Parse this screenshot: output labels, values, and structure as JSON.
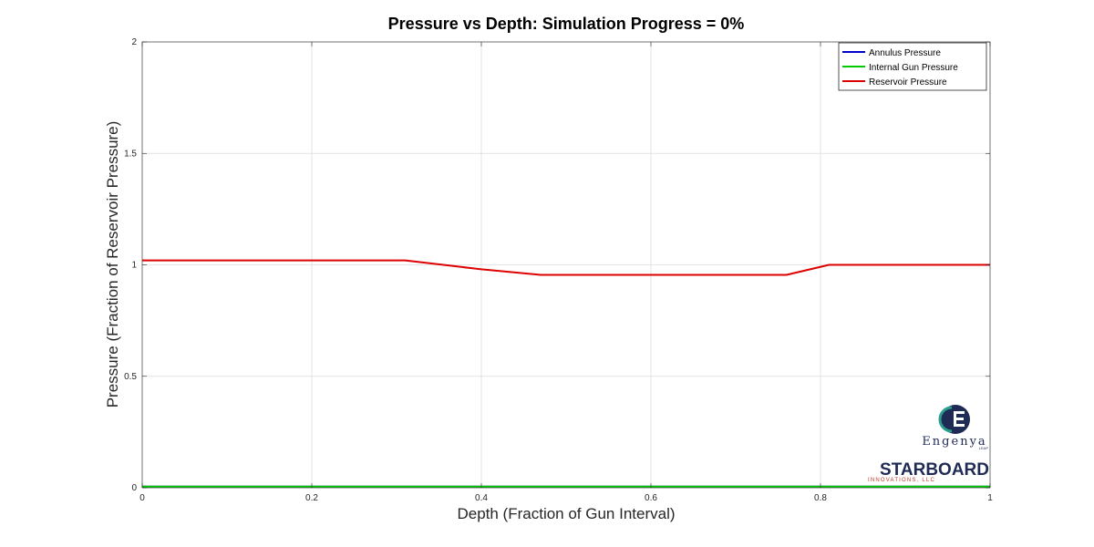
{
  "chart_data": {
    "type": "line",
    "title": "Pressure vs Depth: Simulation Progress = 0%",
    "xlabel": "Depth (Fraction of Gun Interval)",
    "ylabel": "Pressure (Fraction of Reservoir Pressure)",
    "xlim": [
      0,
      1
    ],
    "ylim": [
      0,
      2
    ],
    "xticks": [
      0,
      0.2,
      0.4,
      0.6,
      0.8,
      1
    ],
    "xtick_labels": [
      "0",
      "0.2",
      "0.4",
      "0.6",
      "0.8",
      "1"
    ],
    "yticks": [
      0,
      0.5,
      1,
      1.5,
      2
    ],
    "ytick_labels": [
      "0",
      "0.5",
      "1",
      "1.5",
      "2"
    ],
    "grid": true,
    "legend_position": "top-right",
    "series": [
      {
        "name": "Annulus Pressure",
        "color": "#0000cc",
        "x": [
          0,
          1
        ],
        "y": [
          0.005,
          0.005
        ]
      },
      {
        "name": "Internal Gun Pressure",
        "color": "#00cc00",
        "x": [
          0,
          1
        ],
        "y": [
          0.005,
          0.005
        ]
      },
      {
        "name": "Reservoir Pressure",
        "color": "#dd0000",
        "x": [
          0,
          0.31,
          0.4,
          0.47,
          0.76,
          0.81,
          1
        ],
        "y": [
          1.02,
          1.02,
          0.98,
          0.955,
          0.955,
          1.0,
          1.0
        ]
      }
    ]
  },
  "logos": {
    "engenya": {
      "name": "Engenya",
      "sub": "LEAP",
      "color": "#1f2a55",
      "accent": "#2a9d8f"
    },
    "starboard": {
      "name": "STARBOARD",
      "sub": "INNOVATIONS, LLC",
      "color": "#1f2a55",
      "sub_color": "#c0392b"
    }
  }
}
